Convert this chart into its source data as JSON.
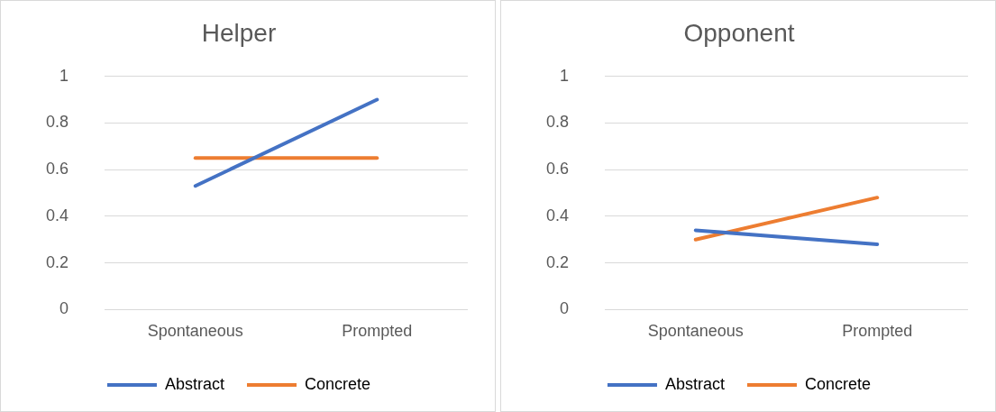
{
  "chart_data": [
    {
      "type": "line",
      "title": "Helper",
      "categories": [
        "Spontaneous",
        "Prompted"
      ],
      "series": [
        {
          "name": "Abstract",
          "color": "#4472c4",
          "values": [
            0.53,
            0.9
          ]
        },
        {
          "name": "Concrete",
          "color": "#ed7d31",
          "values": [
            0.65,
            0.65
          ]
        }
      ],
      "ylim": [
        0,
        1
      ],
      "yticks": [
        0,
        0.2,
        0.4,
        0.6,
        0.8,
        1
      ],
      "grid": "y",
      "legend": "bottom",
      "marker": "none",
      "line_style": "solid"
    },
    {
      "type": "line",
      "title": "Opponent",
      "categories": [
        "Spontaneous",
        "Prompted"
      ],
      "series": [
        {
          "name": "Abstract",
          "color": "#4472c4",
          "values": [
            0.34,
            0.28
          ]
        },
        {
          "name": "Concrete",
          "color": "#ed7d31",
          "values": [
            0.3,
            0.48
          ]
        }
      ],
      "ylim": [
        0,
        1
      ],
      "yticks": [
        0,
        0.2,
        0.4,
        0.6,
        0.8,
        1
      ],
      "grid": "y",
      "legend": "bottom",
      "marker": "none",
      "line_style": "solid"
    }
  ]
}
